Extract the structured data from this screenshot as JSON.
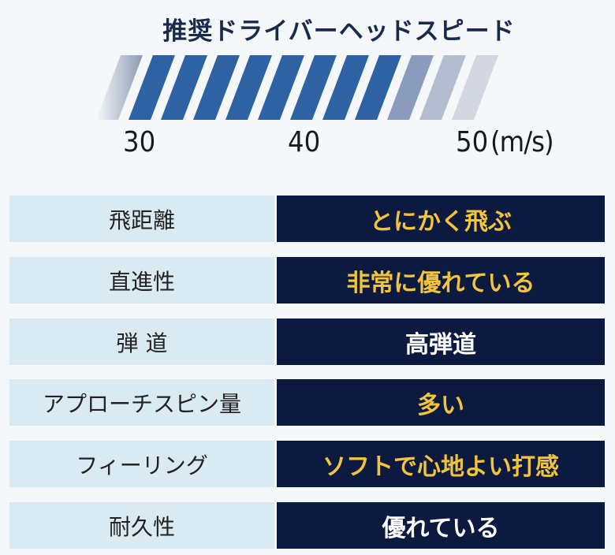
{
  "title": "推奨ドライバーヘッドスピード",
  "speed_scale": {
    "ticks": [
      "30",
      "40",
      "50"
    ],
    "unit": "(m/s)",
    "recommended_range": [
      31,
      46
    ],
    "blue": "#2f62a3"
  },
  "colors": {
    "label_bg": "#d9eaf2",
    "value_bg": "#0c1a40",
    "gold": "#f2c43b",
    "white": "#ffffff"
  },
  "rows": [
    {
      "label": "飛距離",
      "value": "とにかく飛ぶ",
      "color": "gold"
    },
    {
      "label": "直進性",
      "value": "非常に優れている",
      "color": "gold"
    },
    {
      "label": "弾 道",
      "value": "高弾道",
      "color": "white"
    },
    {
      "label": "アプローチスピン量",
      "value": "多い",
      "color": "gold"
    },
    {
      "label": "フィーリング",
      "value": "ソフトで心地よい打感",
      "color": "gold"
    },
    {
      "label": "耐久性",
      "value": "優れている",
      "color": "white"
    }
  ]
}
